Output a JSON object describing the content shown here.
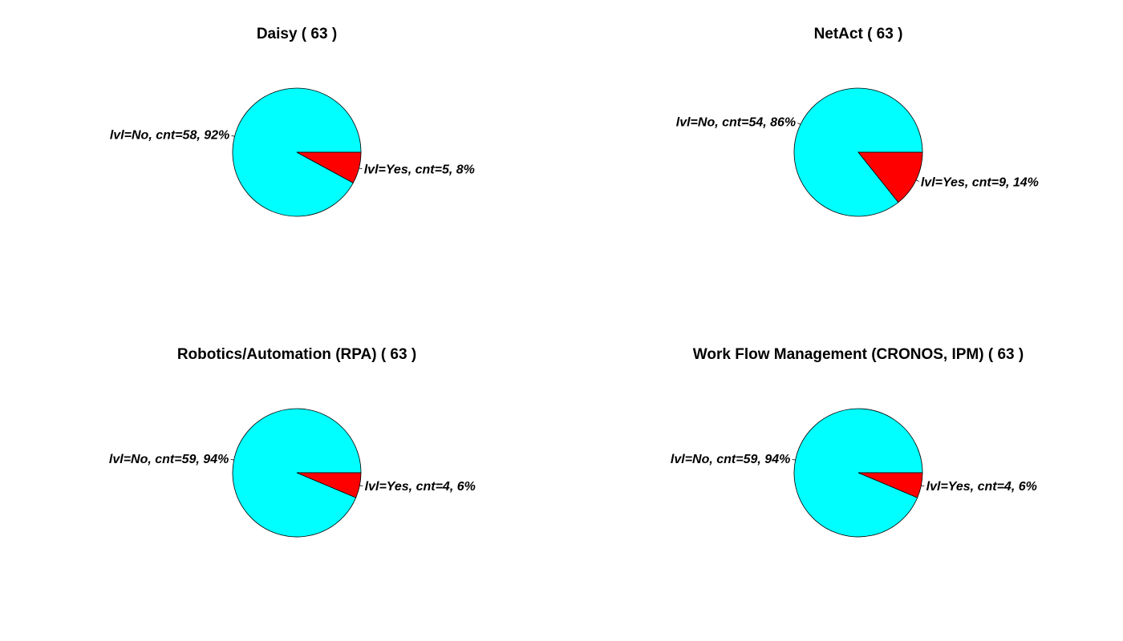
{
  "colors": {
    "no": "#00ffff",
    "yes": "#ff0000",
    "outline": "#000000"
  },
  "chart_data": [
    {
      "type": "pie",
      "title": "Daisy ( 63 )",
      "slices": [
        {
          "key": "no",
          "label": "lvl=No, cnt=58, 92%",
          "value": 58
        },
        {
          "key": "yes",
          "label": "lvl=Yes, cnt=5, 8%",
          "value": 5
        }
      ]
    },
    {
      "type": "pie",
      "title": "NetAct ( 63 )",
      "slices": [
        {
          "key": "no",
          "label": "lvl=No, cnt=54, 86%",
          "value": 54
        },
        {
          "key": "yes",
          "label": "lvl=Yes, cnt=9, 14%",
          "value": 9
        }
      ]
    },
    {
      "type": "pie",
      "title": "Robotics/Automation (RPA) ( 63 )",
      "slices": [
        {
          "key": "no",
          "label": "lvl=No, cnt=59, 94%",
          "value": 59
        },
        {
          "key": "yes",
          "label": "lvl=Yes, cnt=4, 6%",
          "value": 4
        }
      ]
    },
    {
      "type": "pie",
      "title": "Work Flow Management (CRONOS, IPM) ( 63 )",
      "slices": [
        {
          "key": "no",
          "label": "lvl=No, cnt=59, 94%",
          "value": 59
        },
        {
          "key": "yes",
          "label": "lvl=Yes, cnt=4, 6%",
          "value": 4
        }
      ]
    }
  ]
}
